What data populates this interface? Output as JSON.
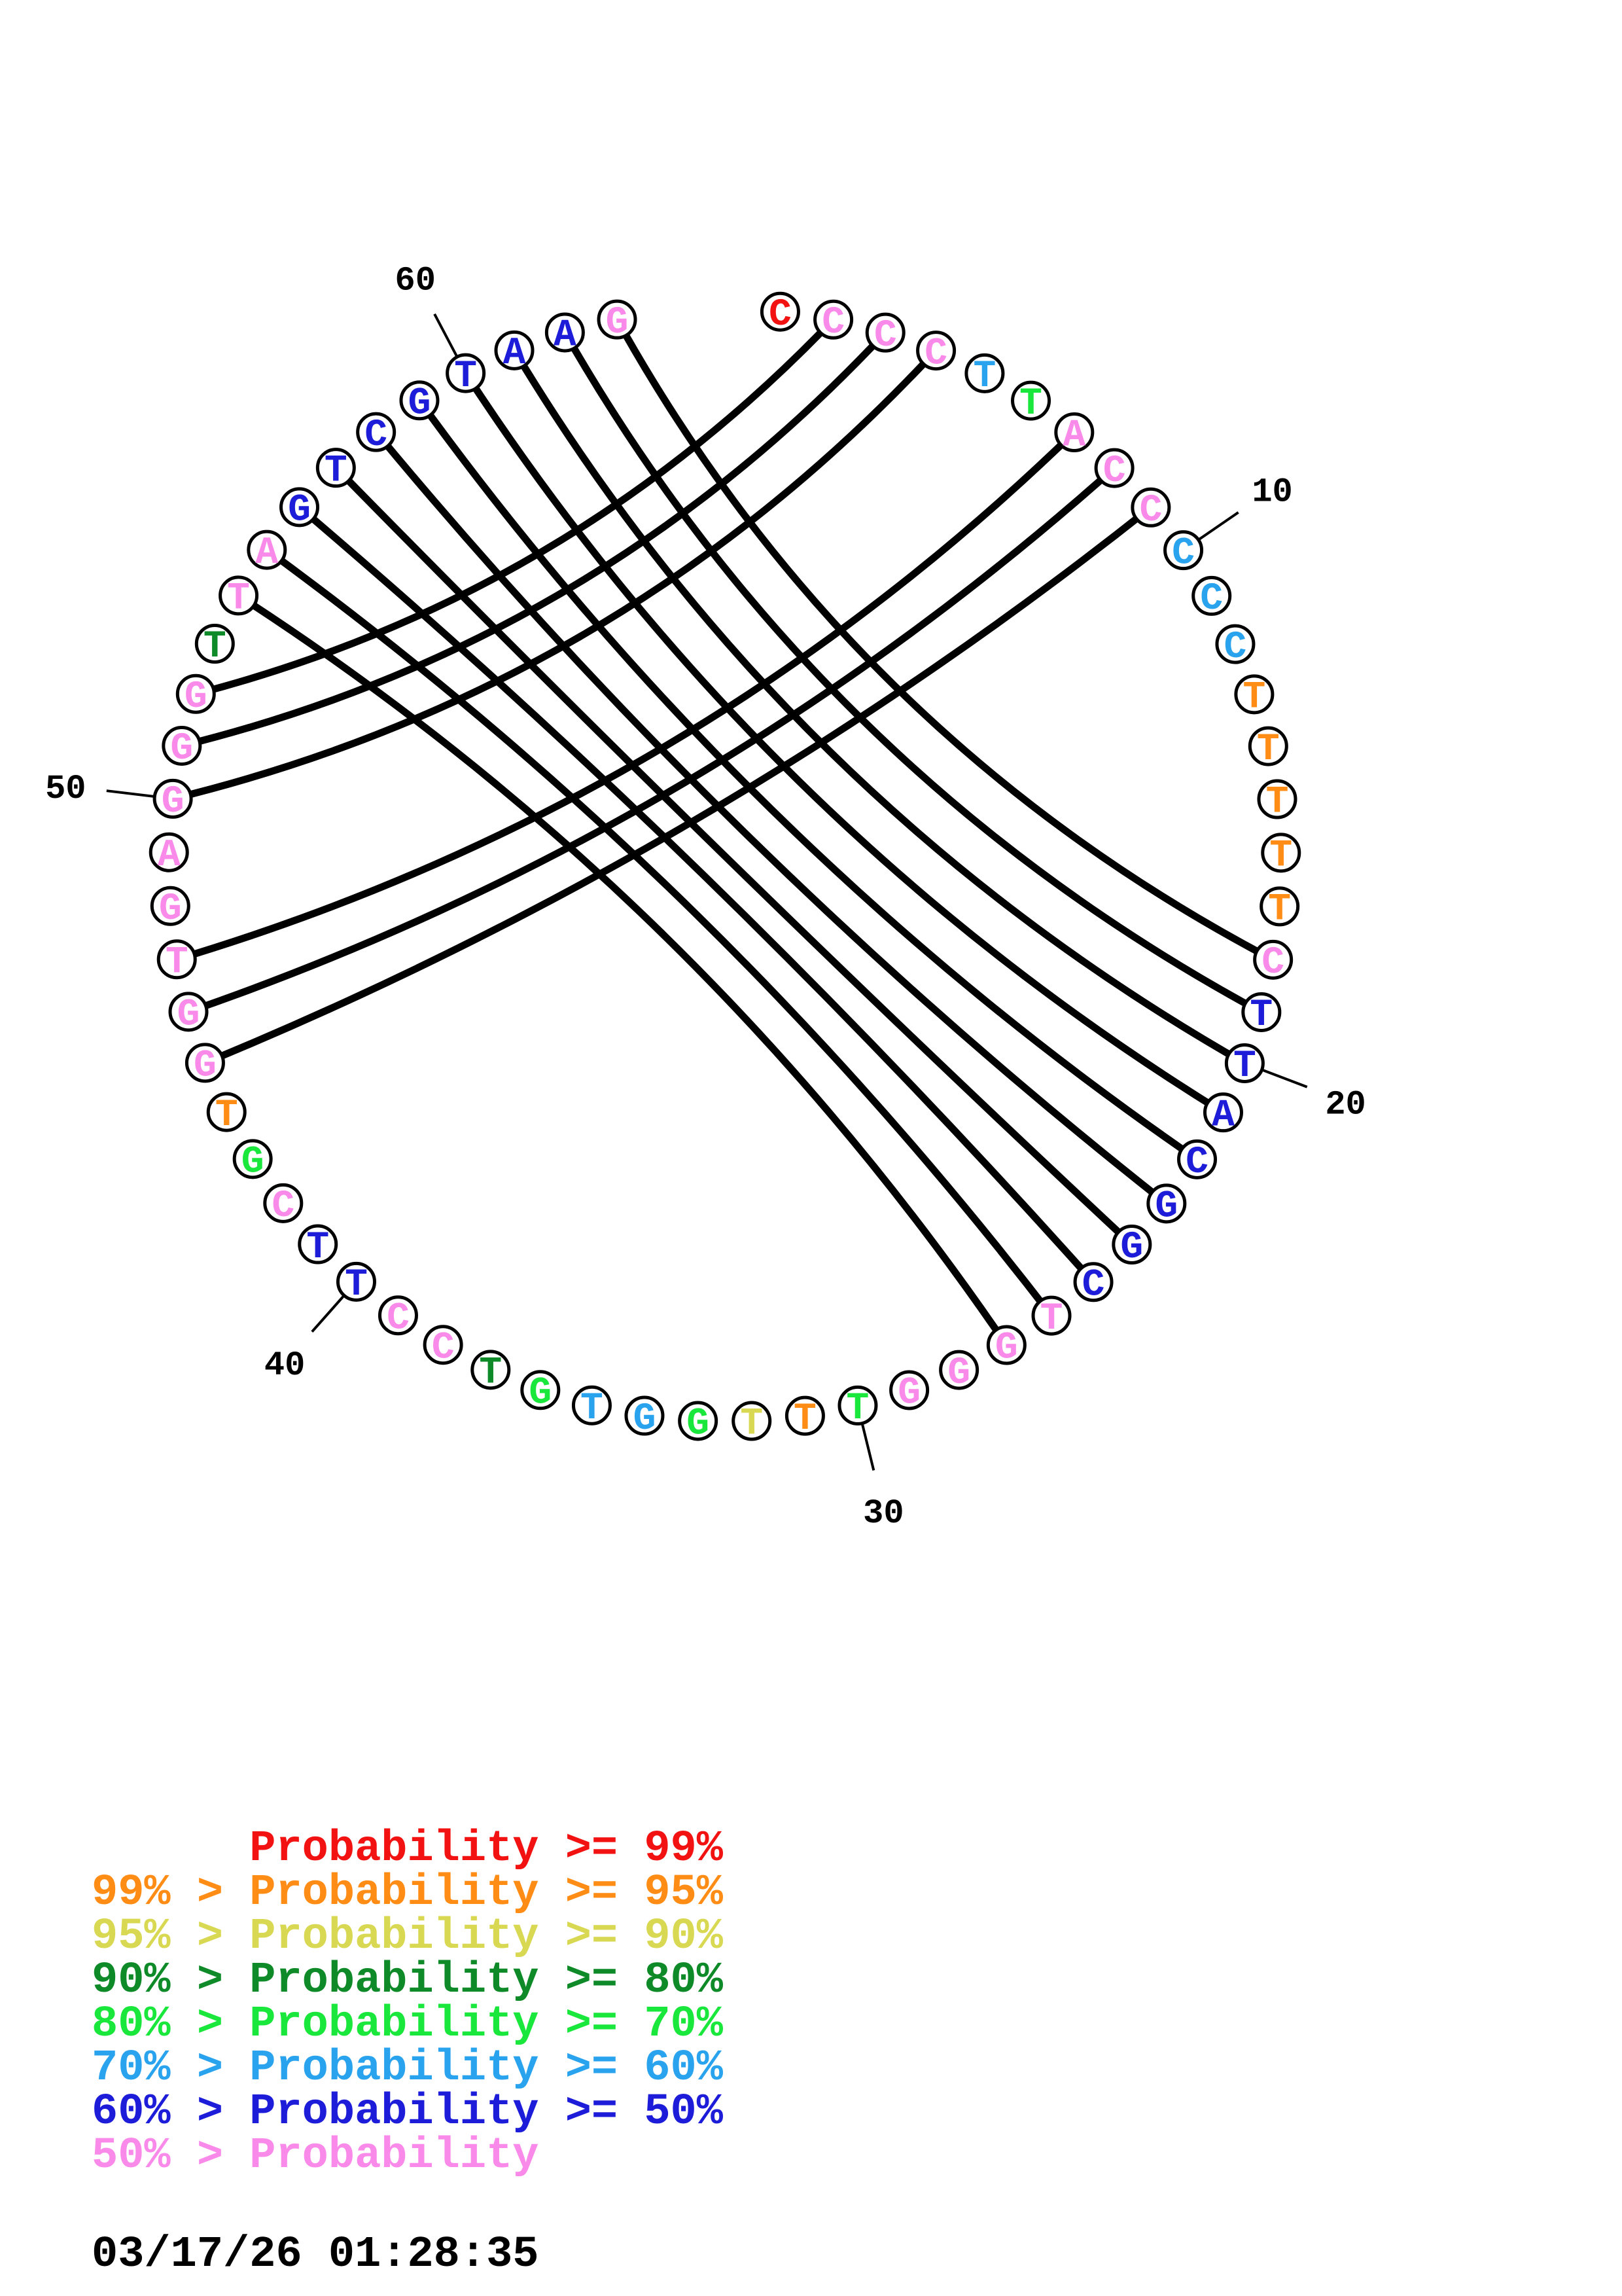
{
  "chart_data": {
    "type": "circular-base-pair-probability-plot",
    "sequence": "CCCCTTACCCCCTTTTTCTTACGGCTGGGTTTGGTGTCCTTCGTGGTGAGGGTTAGTCGTAAG",
    "sequence_length": 63,
    "probability_class": [
      "99",
      "lt",
      "lt",
      "lt",
      "60",
      "70",
      "lt",
      "lt",
      "lt",
      "60",
      "60",
      "60",
      "95",
      "95",
      "95",
      "95",
      "95",
      "lt",
      "50",
      "50",
      "50",
      "50",
      "50",
      "50",
      "50",
      "lt",
      "lt",
      "lt",
      "lt",
      "70",
      "95",
      "90",
      "70",
      "60",
      "60",
      "70",
      "80",
      "lt",
      "lt",
      "50",
      "50",
      "lt",
      "70",
      "95",
      "lt",
      "lt",
      "lt",
      "lt",
      "lt",
      "lt",
      "lt",
      "lt",
      "80",
      "lt",
      "lt",
      "50",
      "50",
      "50",
      "50",
      "50",
      "50",
      "50",
      "lt"
    ],
    "pairs": [
      [
        2,
        52
      ],
      [
        3,
        51
      ],
      [
        4,
        50
      ],
      [
        7,
        47
      ],
      [
        8,
        46
      ],
      [
        9,
        45
      ],
      [
        18,
        63
      ],
      [
        19,
        62
      ],
      [
        20,
        61
      ],
      [
        21,
        60
      ],
      [
        22,
        59
      ],
      [
        23,
        58
      ],
      [
        24,
        57
      ],
      [
        25,
        56
      ],
      [
        26,
        55
      ],
      [
        27,
        54
      ]
    ],
    "position_labels": [
      10,
      20,
      30,
      40,
      50,
      60
    ],
    "colors": {
      "99": "#f21212",
      "95": "#ff8c15",
      "90": "#d8d852",
      "80": "#0f8a28",
      "70": "#1ae73c",
      "60": "#2aa3ee",
      "50": "#1c1cd9",
      "lt": "#fa8aea",
      "chord": "#000000",
      "circle_outline": "#000000"
    },
    "legend": [
      {
        "text": "      Probability >= 99%",
        "class": "99"
      },
      {
        "text": "99% > Probability >= 95%",
        "class": "95"
      },
      {
        "text": "95% > Probability >= 90%",
        "class": "90"
      },
      {
        "text": "90% > Probability >= 80%",
        "class": "80"
      },
      {
        "text": "80% > Probability >= 70%",
        "class": "70"
      },
      {
        "text": "70% > Probability >= 60%",
        "class": "60"
      },
      {
        "text": "60% > Probability >= 50%",
        "class": "50"
      },
      {
        "text": "50% > Probability",
        "class": "lt"
      }
    ]
  },
  "timestamp": "03/17/26 01:28:35"
}
